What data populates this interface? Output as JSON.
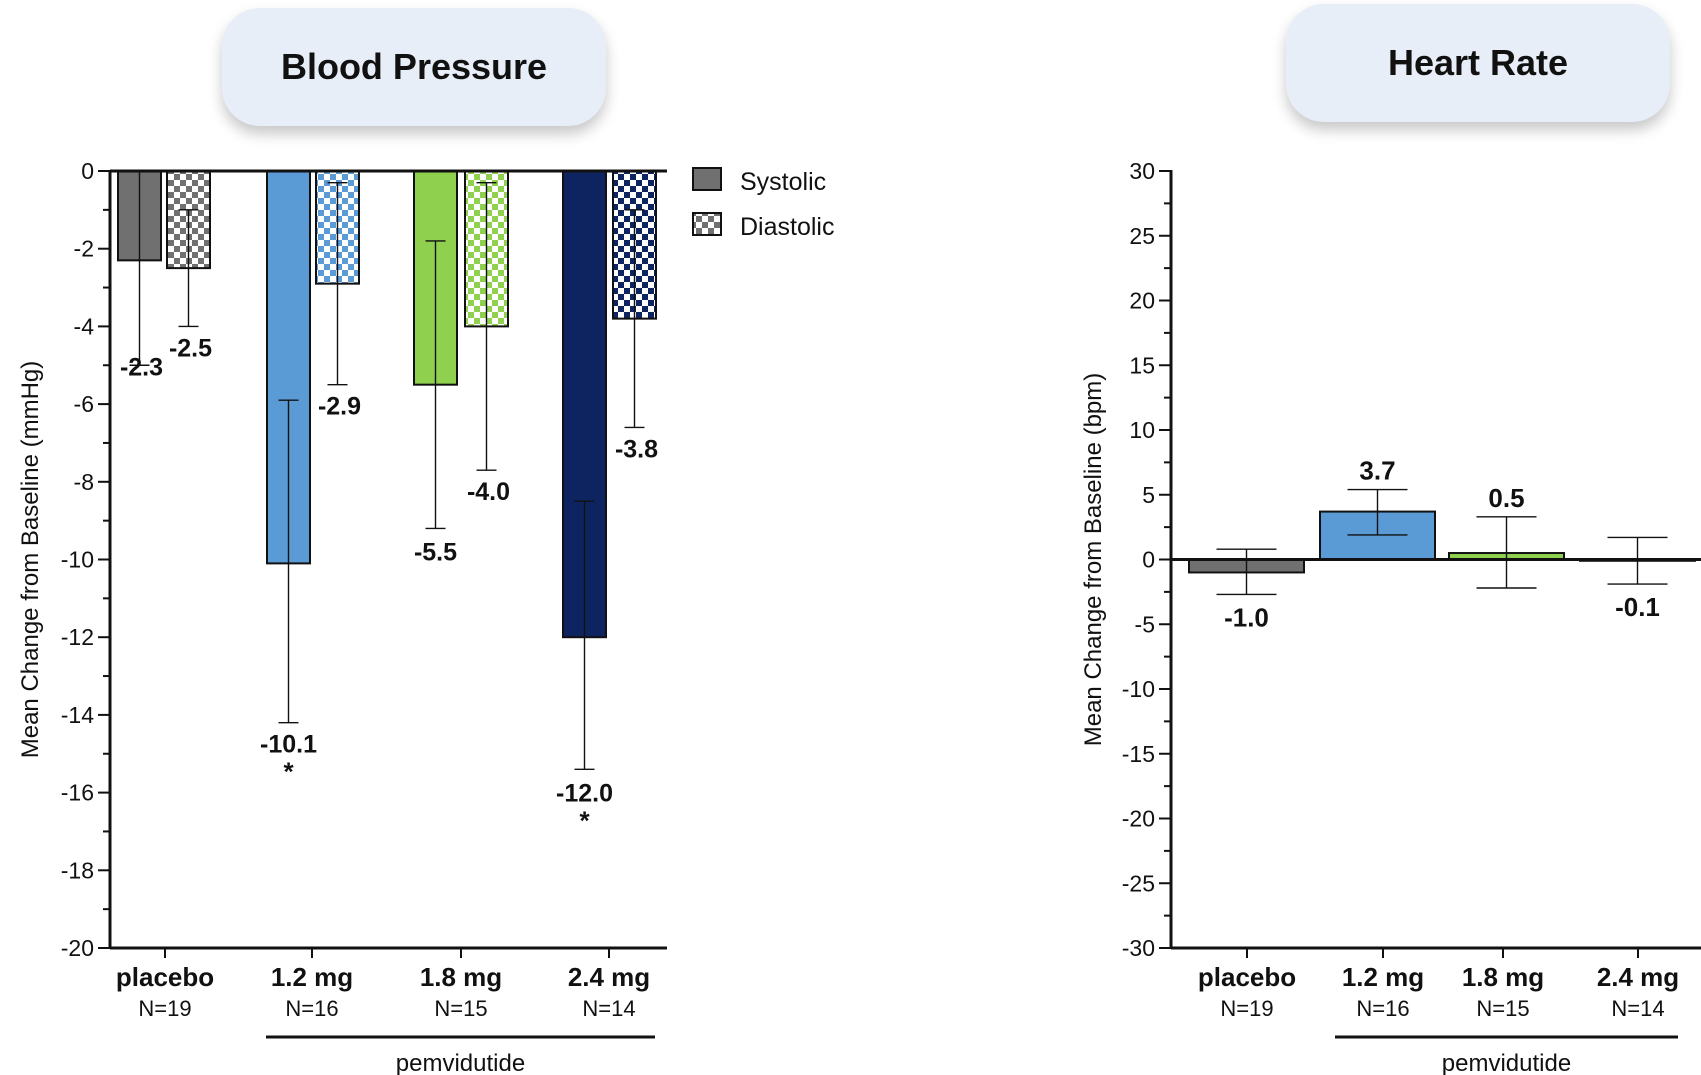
{
  "panels": {
    "bp": {
      "title": "Blood Pressure"
    },
    "hr": {
      "title": "Heart Rate"
    }
  },
  "colors": {
    "placebo": "#707070",
    "dose_1_2": "#5b9bd5",
    "dose_1_8": "#8fd14f",
    "dose_2_4": "#0e2461"
  },
  "chart_data": [
    {
      "type": "bar",
      "title": "Blood Pressure",
      "ylabel": "Mean Change from Baseline (mmHg)",
      "ylim": [
        -20,
        0
      ],
      "yticks": [
        0,
        -2,
        -4,
        -6,
        -8,
        -10,
        -12,
        -14,
        -16,
        -18,
        -20
      ],
      "categories": [
        "placebo",
        "1.2 mg",
        "1.8 mg",
        "2.4 mg"
      ],
      "category_n": [
        "N=19",
        "N=16",
        "N=15",
        "N=14"
      ],
      "group_label": "pemvidutide",
      "legend": {
        "position": "top-right",
        "entries": [
          "Systolic",
          "Diastolic"
        ]
      },
      "series": [
        {
          "name": "Systolic",
          "values": [
            -2.3,
            -10.1,
            -5.5,
            -12.0
          ],
          "labels": [
            "-2.3",
            "-10.1",
            "-5.5",
            "-12.0"
          ],
          "error_low": [
            -5.0,
            -14.2,
            -9.2,
            -15.4
          ],
          "error_high": [
            0,
            -5.9,
            -1.8,
            -8.5
          ],
          "significance": [
            "",
            "*",
            "",
            "*"
          ]
        },
        {
          "name": "Diastolic",
          "values": [
            -2.5,
            -2.9,
            -4.0,
            -3.8
          ],
          "labels": [
            "-2.5",
            "-2.9",
            "-4.0",
            "-3.8"
          ],
          "error_low": [
            -4.0,
            -5.5,
            -7.7,
            -6.6
          ],
          "error_high": [
            -1.0,
            -0.3,
            -0.3,
            -1.0
          ],
          "significance": [
            "",
            "",
            "",
            ""
          ]
        }
      ]
    },
    {
      "type": "bar",
      "title": "Heart Rate",
      "ylabel": "Mean Change from Baseline (bpm)",
      "ylim": [
        -30,
        30
      ],
      "yticks": [
        30,
        25,
        20,
        15,
        10,
        5,
        0,
        -5,
        -10,
        -15,
        -20,
        -25,
        -30
      ],
      "categories": [
        "placebo",
        "1.2 mg",
        "1.8 mg",
        "2.4 mg"
      ],
      "category_n": [
        "N=19",
        "N=16",
        "N=15",
        "N=14"
      ],
      "group_label": "pemvidutide",
      "series": [
        {
          "values": [
            -1.0,
            3.7,
            0.5,
            -0.1
          ],
          "labels": [
            "-1.0",
            "3.7",
            "0.5",
            "-0.1"
          ],
          "error_low": [
            -2.7,
            1.9,
            -2.2,
            -1.9
          ],
          "error_high": [
            0.8,
            5.4,
            3.3,
            1.7
          ]
        }
      ]
    }
  ]
}
